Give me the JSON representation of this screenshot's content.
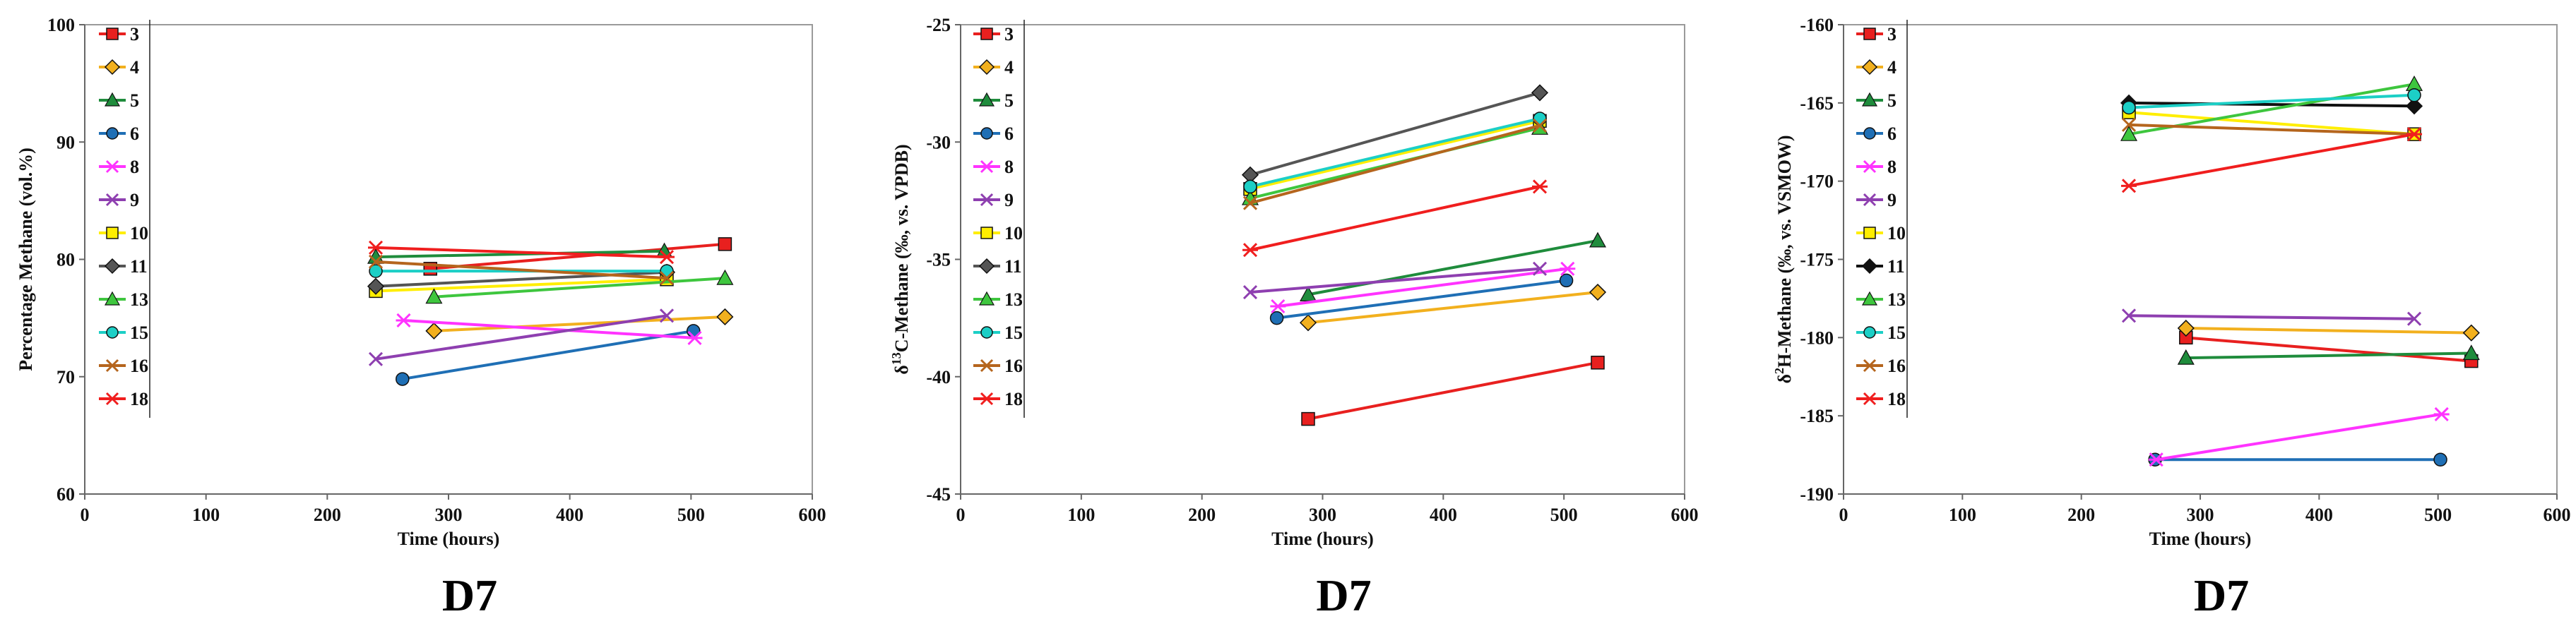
{
  "chart_data": [
    {
      "type": "line",
      "caption": "D7",
      "xlabel": "Time (hours)",
      "ylabel": "Percentage Methane (vol.%)",
      "ylabel_parts": [
        {
          "t": "Percentage Methane (vol.%)"
        }
      ],
      "xlim": [
        0,
        600
      ],
      "ylim": [
        60,
        100
      ],
      "xticks": [
        0,
        100,
        200,
        300,
        400,
        500,
        600
      ],
      "yticks": [
        60,
        70,
        80,
        90,
        100
      ],
      "xtick_labels": [
        "0",
        "100",
        "200",
        "300",
        "400",
        "500",
        "600"
      ],
      "ytick_labels": [
        "60",
        "70",
        "80",
        "90",
        "100"
      ],
      "legend": "top-left",
      "series": [
        {
          "name": "3",
          "color": "#e8201f",
          "marker": "square",
          "x": [
            285,
            528
          ],
          "y": [
            79.2,
            81.3
          ]
        },
        {
          "name": "4",
          "color": "#f2b01e",
          "marker": "diamond",
          "x": [
            288,
            528
          ],
          "y": [
            73.9,
            75.1
          ]
        },
        {
          "name": "5",
          "color": "#1f8c3c",
          "marker": "triangle",
          "x": [
            240,
            478
          ],
          "y": [
            80.2,
            80.7
          ]
        },
        {
          "name": "6",
          "color": "#1f6fb5",
          "marker": "circle",
          "x": [
            262,
            502
          ],
          "y": [
            69.8,
            73.9
          ]
        },
        {
          "name": "8",
          "color": "#ff33ff",
          "marker": "star",
          "x": [
            263,
            503
          ],
          "y": [
            74.8,
            73.3
          ]
        },
        {
          "name": "9",
          "color": "#8e3fb0",
          "marker": "x",
          "x": [
            240,
            480
          ],
          "y": [
            71.5,
            75.2
          ]
        },
        {
          "name": "10",
          "color": "#ffee00",
          "marker": "square",
          "x": [
            240,
            480
          ],
          "y": [
            77.3,
            78.3
          ]
        },
        {
          "name": "11",
          "color": "#555555",
          "marker": "diamond",
          "x": [
            240,
            480
          ],
          "y": [
            77.7,
            78.9
          ]
        },
        {
          "name": "13",
          "color": "#3ec63e",
          "marker": "triangle",
          "x": [
            288,
            528
          ],
          "y": [
            76.8,
            78.4
          ]
        },
        {
          "name": "15",
          "color": "#1ccfc6",
          "marker": "circle",
          "x": [
            240,
            480
          ],
          "y": [
            79.0,
            79.0
          ]
        },
        {
          "name": "16",
          "color": "#b5651d",
          "marker": "x",
          "x": [
            240,
            480
          ],
          "y": [
            79.8,
            78.4
          ]
        },
        {
          "name": "18",
          "color": "#f01e1e",
          "marker": "star",
          "x": [
            240,
            480
          ],
          "y": [
            81.0,
            80.2
          ]
        }
      ]
    },
    {
      "type": "line",
      "caption": "D7",
      "xlabel": "Time (hours)",
      "ylabel": "δ13C-Methane (‰, vs. VPDB)",
      "ylabel_parts": [
        {
          "t": "δ"
        },
        {
          "t": "13",
          "sup": true
        },
        {
          "t": "C-Methane (‰, vs. VPDB)"
        }
      ],
      "xlim": [
        0,
        600
      ],
      "ylim": [
        -45,
        -25
      ],
      "xticks": [
        0,
        100,
        200,
        300,
        400,
        500,
        600
      ],
      "yticks": [
        -45,
        -40,
        -35,
        -30,
        -25
      ],
      "xtick_labels": [
        "0",
        "100",
        "200",
        "300",
        "400",
        "500",
        "600"
      ],
      "ytick_labels": [
        "-45",
        "-40",
        "-35",
        "-30",
        "-25"
      ],
      "legend": "top-left",
      "series": [
        {
          "name": "3",
          "color": "#e8201f",
          "marker": "square",
          "x": [
            288,
            528
          ],
          "y": [
            -41.8,
            -39.4
          ]
        },
        {
          "name": "4",
          "color": "#f2b01e",
          "marker": "diamond",
          "x": [
            288,
            528
          ],
          "y": [
            -37.7,
            -36.4
          ]
        },
        {
          "name": "5",
          "color": "#1f8c3c",
          "marker": "triangle",
          "x": [
            288,
            528
          ],
          "y": [
            -36.5,
            -34.2
          ]
        },
        {
          "name": "6",
          "color": "#1f6fb5",
          "marker": "circle",
          "x": [
            262,
            502
          ],
          "y": [
            -37.5,
            -35.9
          ]
        },
        {
          "name": "8",
          "color": "#ff33ff",
          "marker": "star",
          "x": [
            263,
            503
          ],
          "y": [
            -37.0,
            -35.4
          ]
        },
        {
          "name": "9",
          "color": "#8e3fb0",
          "marker": "x",
          "x": [
            240,
            480
          ],
          "y": [
            -36.4,
            -35.4
          ]
        },
        {
          "name": "10",
          "color": "#ffee00",
          "marker": "square",
          "x": [
            240,
            480
          ],
          "y": [
            -32.0,
            -29.1
          ]
        },
        {
          "name": "11",
          "color": "#555555",
          "marker": "diamond",
          "x": [
            240,
            480
          ],
          "y": [
            -31.4,
            -27.9
          ]
        },
        {
          "name": "13",
          "color": "#3ec63e",
          "marker": "triangle",
          "x": [
            240,
            480
          ],
          "y": [
            -32.4,
            -29.4
          ]
        },
        {
          "name": "15",
          "color": "#1ccfc6",
          "marker": "circle",
          "x": [
            240,
            480
          ],
          "y": [
            -31.9,
            -29.0
          ]
        },
        {
          "name": "16",
          "color": "#b5651d",
          "marker": "x",
          "x": [
            240,
            480
          ],
          "y": [
            -32.6,
            -29.3
          ]
        },
        {
          "name": "18",
          "color": "#f01e1e",
          "marker": "star",
          "x": [
            240,
            480
          ],
          "y": [
            -34.6,
            -31.9
          ]
        }
      ]
    },
    {
      "type": "line",
      "caption": "D7",
      "xlabel": "Time (hours)",
      "ylabel": "δ2H-Methane (‰, vs. VSMOW)",
      "ylabel_parts": [
        {
          "t": "δ"
        },
        {
          "t": "2",
          "sup": true
        },
        {
          "t": "H-Methane (‰, vs. VSMOW)"
        }
      ],
      "xlim": [
        0,
        600
      ],
      "ylim": [
        -190,
        -160
      ],
      "xticks": [
        0,
        100,
        200,
        300,
        400,
        500,
        600
      ],
      "yticks": [
        -190,
        -185,
        -180,
        -175,
        -170,
        -165,
        -160
      ],
      "xtick_labels": [
        "0",
        "100",
        "200",
        "300",
        "400",
        "500",
        "600"
      ],
      "ytick_labels": [
        "-190",
        "-185",
        "-180",
        "-175",
        "-170",
        "-165",
        "-160"
      ],
      "legend": "top-left",
      "series": [
        {
          "name": "3",
          "color": "#e8201f",
          "marker": "square",
          "x": [
            288,
            528
          ],
          "y": [
            -180.0,
            -181.5
          ]
        },
        {
          "name": "4",
          "color": "#f2b01e",
          "marker": "diamond",
          "x": [
            288,
            528
          ],
          "y": [
            -179.4,
            -179.7
          ]
        },
        {
          "name": "5",
          "color": "#1f8c3c",
          "marker": "triangle",
          "x": [
            288,
            528
          ],
          "y": [
            -181.3,
            -181.0
          ]
        },
        {
          "name": "6",
          "color": "#1f6fb5",
          "marker": "circle",
          "x": [
            262,
            502
          ],
          "y": [
            -187.8,
            -187.8
          ]
        },
        {
          "name": "8",
          "color": "#ff33ff",
          "marker": "star",
          "x": [
            263,
            503
          ],
          "y": [
            -187.8,
            -184.9
          ]
        },
        {
          "name": "9",
          "color": "#8e3fb0",
          "marker": "x",
          "x": [
            240,
            480
          ],
          "y": [
            -178.6,
            -178.8
          ]
        },
        {
          "name": "10",
          "color": "#ffee00",
          "marker": "square",
          "x": [
            240,
            480
          ],
          "y": [
            -165.6,
            -167.0
          ]
        },
        {
          "name": "11",
          "color": "#111111",
          "marker": "diamond",
          "x": [
            240,
            480
          ],
          "y": [
            -165.0,
            -165.2
          ]
        },
        {
          "name": "13",
          "color": "#3ec63e",
          "marker": "triangle",
          "x": [
            240,
            480
          ],
          "y": [
            -167.0,
            -163.8
          ]
        },
        {
          "name": "15",
          "color": "#1ccfc6",
          "marker": "circle",
          "x": [
            240,
            480
          ],
          "y": [
            -165.3,
            -164.5
          ]
        },
        {
          "name": "16",
          "color": "#b5651d",
          "marker": "x",
          "x": [
            240,
            480
          ],
          "y": [
            -166.4,
            -167.0
          ]
        },
        {
          "name": "18",
          "color": "#f01e1e",
          "marker": "star",
          "x": [
            240,
            480
          ],
          "y": [
            -170.3,
            -167.0
          ]
        }
      ]
    }
  ]
}
